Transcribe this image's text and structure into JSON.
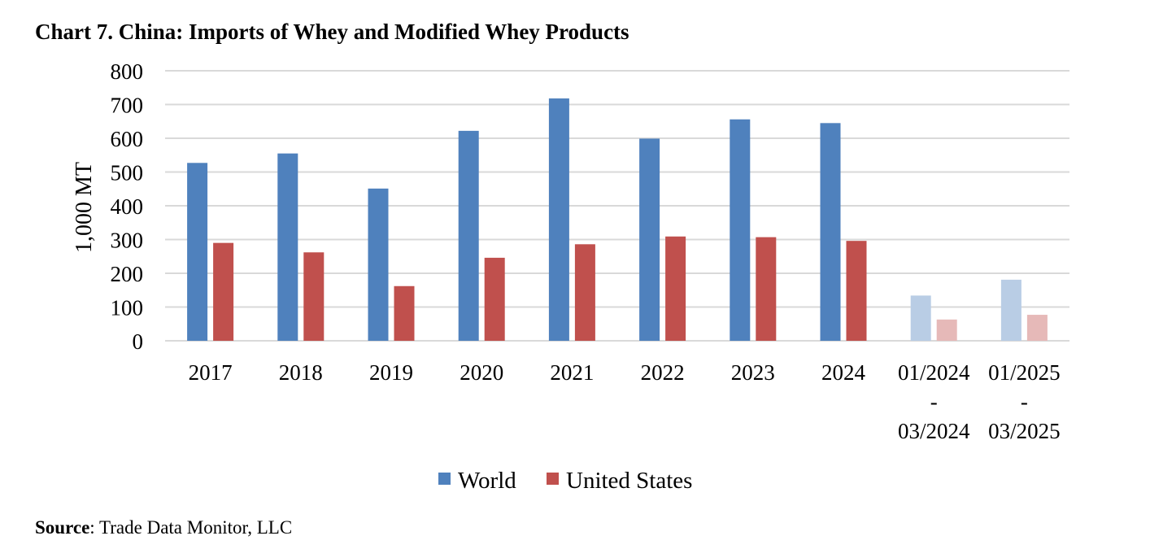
{
  "title": "Chart 7. China:  Imports of Whey and Modified Whey Products",
  "source_label": "Source",
  "source_text": ": Trade Data Monitor, LLC",
  "chart_data": {
    "type": "bar",
    "title": "Chart 7. China:  Imports of Whey and Modified Whey Products",
    "xlabel": "",
    "ylabel": "1,000 MT",
    "ylim": [
      0,
      800
    ],
    "yticks": [
      0,
      100,
      200,
      300,
      400,
      500,
      600,
      700,
      800
    ],
    "grid": true,
    "legend_position": "bottom",
    "categories": [
      [
        "2017"
      ],
      [
        "2018"
      ],
      [
        "2019"
      ],
      [
        "2020"
      ],
      [
        "2021"
      ],
      [
        "2022"
      ],
      [
        "2023"
      ],
      [
        "2024"
      ],
      [
        "01/2024",
        "-",
        "03/2024"
      ],
      [
        "01/2025",
        "-",
        "03/2025"
      ]
    ],
    "series": [
      {
        "name": "World",
        "color": "#4f81bd",
        "faded_color": "#b9cde5",
        "values": [
          527,
          555,
          451,
          622,
          718,
          599,
          656,
          645,
          134,
          181
        ]
      },
      {
        "name": "United States",
        "color": "#c0504d",
        "faded_color": "#e6b9b8",
        "values": [
          290,
          262,
          162,
          246,
          286,
          309,
          307,
          296,
          63,
          77
        ]
      }
    ],
    "faded_categories": [
      8,
      9
    ]
  }
}
